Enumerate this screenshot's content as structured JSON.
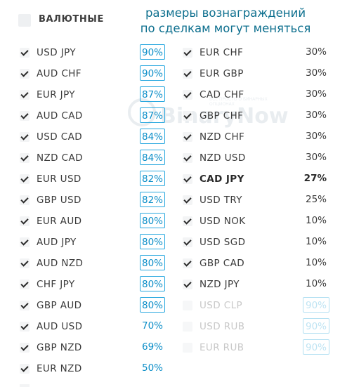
{
  "header": {
    "label": "ВАЛЮТНЫЕ"
  },
  "note": {
    "line1": "размеры вознаграждений",
    "line2": "по сделкам могут меняться"
  },
  "watermark": {
    "title": "BinaryNow",
    "sub1": "ВСЁ ПРОСТО О БИНАРНЫХ",
    "sub2": "ОПЦИОНАХ"
  },
  "left_rows": [
    {
      "pair": "USD JPY",
      "payout": "90%",
      "boxed": true
    },
    {
      "pair": "AUD CHF",
      "payout": "90%",
      "boxed": true
    },
    {
      "pair": "EUR JPY",
      "payout": "87%",
      "boxed": true
    },
    {
      "pair": "AUD CAD",
      "payout": "87%",
      "boxed": true
    },
    {
      "pair": "USD CAD",
      "payout": "84%",
      "boxed": true
    },
    {
      "pair": "NZD CAD",
      "payout": "84%",
      "boxed": true
    },
    {
      "pair": "EUR USD",
      "payout": "82%",
      "boxed": true
    },
    {
      "pair": "GBP USD",
      "payout": "82%",
      "boxed": true
    },
    {
      "pair": "EUR AUD",
      "payout": "80%",
      "boxed": true
    },
    {
      "pair": "AUD JPY",
      "payout": "80%",
      "boxed": true
    },
    {
      "pair": "AUD NZD",
      "payout": "80%",
      "boxed": true
    },
    {
      "pair": "CHF JPY",
      "payout": "80%",
      "boxed": true
    },
    {
      "pair": "GBP AUD",
      "payout": "80%",
      "boxed": true
    },
    {
      "pair": "AUD USD",
      "payout": "70%",
      "boxed": false
    },
    {
      "pair": "GBP NZD",
      "payout": "69%",
      "boxed": false
    },
    {
      "pair": "EUR NZD",
      "payout": "50%",
      "boxed": false
    }
  ],
  "right_rows": [
    {
      "pair": "EUR CHF",
      "payout": "30%",
      "checked": true
    },
    {
      "pair": "EUR GBP",
      "payout": "30%",
      "checked": true
    },
    {
      "pair": "CAD CHF",
      "payout": "30%",
      "checked": true
    },
    {
      "pair": "GBP CHF",
      "payout": "30%",
      "checked": true
    },
    {
      "pair": "NZD CHF",
      "payout": "30%",
      "checked": true
    },
    {
      "pair": "NZD USD",
      "payout": "30%",
      "checked": true
    },
    {
      "pair": "CAD JPY",
      "payout": "27%",
      "checked": true,
      "bold": true
    },
    {
      "pair": "USD TRY",
      "payout": "25%",
      "checked": true
    },
    {
      "pair": "USD NOK",
      "payout": "10%",
      "checked": true
    },
    {
      "pair": "USD SGD",
      "payout": "10%",
      "checked": true
    },
    {
      "pair": "GBP CAD",
      "payout": "10%",
      "checked": true
    },
    {
      "pair": "NZD JPY",
      "payout": "10%",
      "checked": true
    },
    {
      "pair": "USD CLP",
      "payout": "90%",
      "checked": false,
      "disabled": true,
      "boxed": true
    },
    {
      "pair": "USD RUB",
      "payout": "90%",
      "checked": false,
      "disabled": true,
      "boxed": true
    },
    {
      "pair": "EUR RUB",
      "payout": "90%",
      "checked": false,
      "disabled": true,
      "boxed": true
    }
  ]
}
